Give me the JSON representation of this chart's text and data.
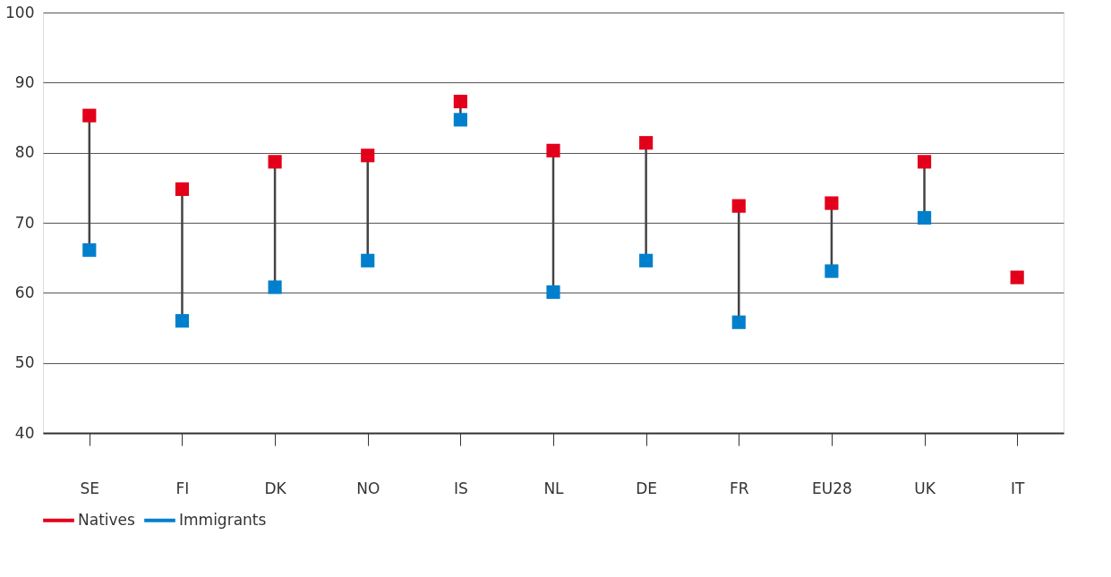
{
  "chart_data": {
    "type": "scatter",
    "categories": [
      "SE",
      "FI",
      "DK",
      "NO",
      "IS",
      "NL",
      "DE",
      "FR",
      "EU28",
      "UK",
      "IT"
    ],
    "series": [
      {
        "name": "Natives",
        "color": "#e2001a",
        "values": [
          85.3,
          74.8,
          78.7,
          79.6,
          87.3,
          80.3,
          81.4,
          72.4,
          72.8,
          78.7,
          62.2
        ]
      },
      {
        "name": "Immigrants",
        "color": "#0080cc",
        "values": [
          66.1,
          56.0,
          60.8,
          64.6,
          84.7,
          60.1,
          64.6,
          55.8,
          63.1,
          70.7,
          null
        ]
      }
    ],
    "ylim": [
      40,
      100
    ],
    "yticks": [
      40,
      50,
      60,
      70,
      80,
      90,
      100
    ],
    "grid": "y",
    "legend": "bottom",
    "marker": "square"
  }
}
